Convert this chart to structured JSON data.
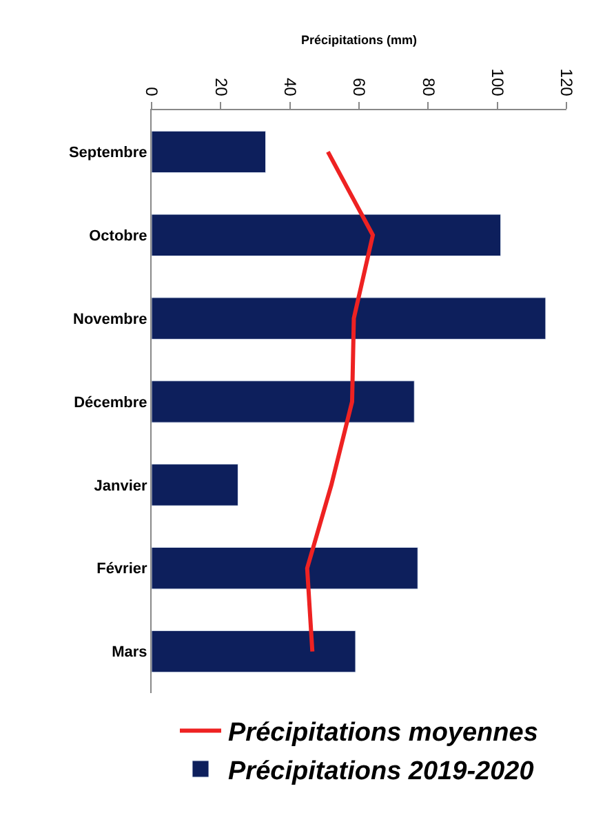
{
  "chart_data": {
    "type": "bar",
    "orientation": "horizontal",
    "xlabel": "Précipitations (mm)",
    "categories": [
      "Septembre",
      "Octobre",
      "Novembre",
      "Décembre",
      "Janvier",
      "Février",
      "Mars"
    ],
    "xlim": [
      0,
      120
    ],
    "xticks": [
      0,
      20,
      40,
      60,
      80,
      100,
      120
    ],
    "grid": false,
    "legend": "bottom",
    "series": [
      {
        "name": "Précipitations moyennes",
        "type": "line",
        "color": "#ee2222",
        "values": [
          51,
          64,
          58.5,
          58,
          52,
          45,
          46.5
        ]
      },
      {
        "name": "Précipitations 2019-2020",
        "color": "#0d1f5c",
        "values": [
          33,
          101,
          114,
          76,
          25,
          77,
          59
        ]
      }
    ]
  }
}
